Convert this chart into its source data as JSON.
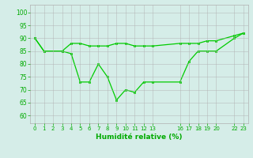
{
  "x_data": [
    0,
    1,
    2,
    3,
    4,
    5,
    6,
    7,
    8,
    9,
    10,
    11,
    12,
    13,
    16,
    17,
    18,
    19,
    20,
    22,
    23
  ],
  "y_line1": [
    90,
    85,
    null,
    85,
    88,
    88,
    87,
    87,
    87,
    88,
    88,
    87,
    87,
    87,
    88,
    88,
    88,
    89,
    89,
    91,
    92
  ],
  "y_line2": [
    90,
    85,
    null,
    85,
    84,
    73,
    73,
    80,
    75,
    66,
    70,
    69,
    73,
    73,
    73,
    81,
    85,
    85,
    85,
    90,
    92
  ],
  "line_color": "#00cc00",
  "bg_color": "#d5ede8",
  "grid_color": "#b0b0b0",
  "xlabel": "Humidité relative (%)",
  "xlabel_color": "#00aa00",
  "tick_color": "#00aa00",
  "ylim": [
    57,
    103
  ],
  "xlim": [
    -0.5,
    23.5
  ],
  "yticks": [
    60,
    65,
    70,
    75,
    80,
    85,
    90,
    95,
    100
  ],
  "xtick_positions": [
    0,
    1,
    2,
    3,
    4,
    5,
    6,
    7,
    8,
    9,
    10,
    11,
    12,
    13,
    16,
    17,
    18,
    19,
    20,
    22,
    23
  ],
  "xtick_labels": [
    "0",
    "1",
    "2",
    "3",
    "4",
    "5",
    "6",
    "7",
    "8",
    "9",
    "10",
    "11",
    "12",
    "13",
    "16",
    "17",
    "18",
    "19",
    "20",
    "22",
    "23"
  ]
}
